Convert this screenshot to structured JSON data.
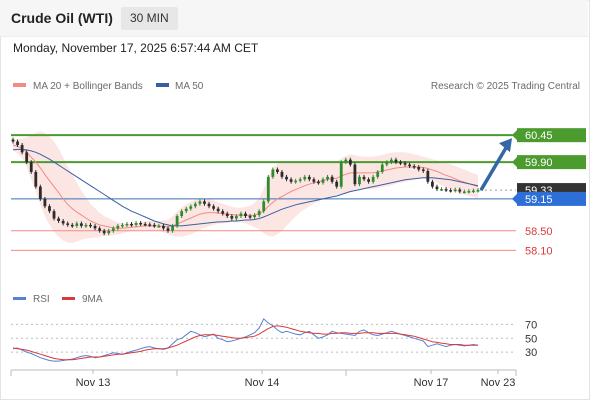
{
  "header": {
    "title": "Crude Oil (WTI)",
    "timeframe": "30 MIN"
  },
  "timestamp": "Monday, November 17, 2025 6:57:44 AM CET",
  "legend": {
    "ma20_label": "MA 20 + Bollinger Bands",
    "ma50_label": "MA 50",
    "ma20_color": "#f28b82",
    "ma50_color": "#3a5fa0",
    "credit": "Research © 2025 Trading Central"
  },
  "rsi_legend": {
    "rsi_label": "RSI",
    "ma_label": "9MA",
    "rsi_color": "#5b7fd6",
    "ma_color": "#d93a3a"
  },
  "colors": {
    "up": "#2e8b2e",
    "down": "#2b2b2b",
    "resistance": "#4c9b2e",
    "support_line": "#3a6fb5",
    "support_text": "#d93a3a",
    "arrow": "#3567a6",
    "current": "#333333"
  },
  "chart_data": [
    {
      "type": "candlestick",
      "x_ticks": [
        "Nov 13",
        "Nov 14",
        "Nov 17",
        "Nov 23"
      ],
      "ylim": [
        57.7,
        60.8
      ],
      "levels": [
        {
          "label": "60.45",
          "value": 60.45,
          "kind": "resistance"
        },
        {
          "label": "59.90",
          "value": 59.9,
          "kind": "resistance"
        },
        {
          "label": "59.33",
          "value": 59.33,
          "kind": "current"
        },
        {
          "label": "59.15",
          "value": 59.15,
          "kind": "pivot"
        },
        {
          "label": "58.50",
          "value": 58.5,
          "kind": "support"
        },
        {
          "label": "58.10",
          "value": 58.1,
          "kind": "support"
        }
      ],
      "close": [
        60.32,
        60.25,
        60.1,
        59.9,
        59.7,
        59.4,
        59.15,
        59.0,
        58.9,
        58.75,
        58.7,
        58.65,
        58.62,
        58.6,
        58.65,
        58.6,
        58.62,
        58.6,
        58.55,
        58.5,
        58.45,
        58.5,
        58.55,
        58.6,
        58.62,
        58.64,
        58.62,
        58.66,
        58.64,
        58.63,
        58.62,
        58.6,
        58.6,
        58.55,
        58.5,
        58.6,
        58.8,
        58.9,
        58.95,
        59.0,
        59.05,
        59.1,
        59.05,
        59.0,
        58.95,
        58.9,
        58.85,
        58.8,
        58.75,
        58.8,
        58.85,
        58.8,
        58.78,
        58.82,
        58.9,
        59.1,
        59.6,
        59.75,
        59.7,
        59.6,
        59.55,
        59.5,
        59.52,
        59.55,
        59.6,
        59.55,
        59.5,
        59.48,
        59.55,
        59.6,
        59.5,
        59.4,
        59.9,
        59.95,
        59.85,
        59.45,
        59.6,
        59.55,
        59.5,
        59.6,
        59.7,
        59.85,
        59.9,
        59.95,
        59.9,
        59.88,
        59.85,
        59.82,
        59.8,
        59.75,
        59.72,
        59.5,
        59.4,
        59.35,
        59.35,
        59.33,
        59.32,
        59.34,
        59.3,
        59.3,
        59.31,
        59.32,
        59.33
      ],
      "ma20": [
        60.25,
        60.22,
        60.18,
        60.1,
        60.0,
        59.9,
        59.78,
        59.65,
        59.52,
        59.4,
        59.28,
        59.15,
        59.04,
        58.95,
        58.88,
        58.82,
        58.76,
        58.7,
        58.66,
        58.62,
        58.6,
        58.58,
        58.56,
        58.55,
        58.55,
        58.56,
        58.57,
        58.58,
        58.59,
        58.6,
        58.6,
        58.6,
        58.6,
        58.59,
        58.58,
        58.6,
        58.64,
        58.68,
        58.72,
        58.76,
        58.8,
        58.84,
        58.86,
        58.87,
        58.87,
        58.86,
        58.85,
        58.84,
        58.83,
        58.82,
        58.82,
        58.82,
        58.81,
        58.82,
        58.85,
        58.9,
        59.0,
        59.08,
        59.15,
        59.2,
        59.25,
        59.3,
        59.34,
        59.38,
        59.42,
        59.45,
        59.48,
        59.5,
        59.52,
        59.55,
        59.56,
        59.57,
        59.62,
        59.65,
        59.68,
        59.68,
        59.68,
        59.68,
        59.68,
        59.68,
        59.7,
        59.72,
        59.74,
        59.76,
        59.78,
        59.79,
        59.8,
        59.8,
        59.8,
        59.8,
        59.79,
        59.77,
        59.74,
        59.71,
        59.67,
        59.63,
        59.6,
        59.56,
        59.52,
        59.49,
        59.46,
        59.43,
        59.4
      ],
      "ma50": [
        60.15,
        60.16,
        60.16,
        60.15,
        60.13,
        60.1,
        60.06,
        60.01,
        59.96,
        59.9,
        59.84,
        59.78,
        59.72,
        59.66,
        59.6,
        59.54,
        59.48,
        59.42,
        59.36,
        59.3,
        59.24,
        59.18,
        59.12,
        59.06,
        59.0,
        58.95,
        58.9,
        58.86,
        58.82,
        58.78,
        58.74,
        58.7,
        58.67,
        58.64,
        58.62,
        58.6,
        58.6,
        58.6,
        58.61,
        58.62,
        58.63,
        58.64,
        58.65,
        58.66,
        58.67,
        58.68,
        58.68,
        58.69,
        58.7,
        58.7,
        58.71,
        58.72,
        58.72,
        58.73,
        58.75,
        58.78,
        58.82,
        58.86,
        58.9,
        58.94,
        58.97,
        59.0,
        59.03,
        59.05,
        59.07,
        59.09,
        59.11,
        59.13,
        59.15,
        59.17,
        59.19,
        59.21,
        59.24,
        59.27,
        59.3,
        59.32,
        59.34,
        59.36,
        59.38,
        59.4,
        59.42,
        59.44,
        59.46,
        59.48,
        59.5,
        59.52,
        59.54,
        59.55,
        59.56,
        59.57,
        59.58,
        59.58,
        59.58,
        59.57,
        59.56,
        59.55,
        59.54,
        59.52,
        59.5,
        59.48,
        59.46,
        59.44,
        59.42
      ],
      "bb_width": [
        0.1,
        0.15,
        0.2,
        0.3,
        0.45,
        0.6,
        0.75,
        0.85,
        0.9,
        0.92,
        0.9,
        0.85,
        0.78,
        0.7,
        0.6,
        0.5,
        0.42,
        0.35,
        0.3,
        0.25,
        0.2,
        0.18,
        0.15,
        0.12,
        0.1,
        0.08,
        0.07,
        0.07,
        0.08,
        0.09,
        0.1,
        0.1,
        0.1,
        0.12,
        0.15,
        0.2,
        0.26,
        0.3,
        0.32,
        0.33,
        0.33,
        0.32,
        0.3,
        0.28,
        0.25,
        0.22,
        0.2,
        0.18,
        0.16,
        0.15,
        0.15,
        0.17,
        0.2,
        0.25,
        0.32,
        0.45,
        0.6,
        0.7,
        0.72,
        0.7,
        0.65,
        0.6,
        0.55,
        0.5,
        0.48,
        0.45,
        0.42,
        0.4,
        0.38,
        0.36,
        0.35,
        0.34,
        0.36,
        0.38,
        0.38,
        0.36,
        0.34,
        0.33,
        0.33,
        0.33,
        0.33,
        0.33,
        0.33,
        0.33,
        0.32,
        0.31,
        0.3,
        0.28,
        0.26,
        0.24,
        0.22,
        0.22,
        0.22,
        0.23,
        0.24,
        0.25,
        0.26,
        0.26,
        0.26,
        0.26,
        0.25,
        0.24,
        0.24
      ],
      "projection": {
        "from": 59.33,
        "to": 60.45
      }
    },
    {
      "type": "line",
      "title": "RSI",
      "ylim": [
        10,
        85
      ],
      "y_ticks": [
        70,
        50,
        30
      ],
      "series": [
        {
          "name": "RSI",
          "values": [
            35,
            36,
            33,
            30,
            28,
            25,
            22,
            20,
            18,
            17,
            17,
            18,
            19,
            20,
            22,
            24,
            25,
            24,
            22,
            23,
            25,
            27,
            29,
            28,
            27,
            29,
            31,
            33,
            35,
            37,
            38,
            36,
            35,
            34,
            36,
            42,
            48,
            50,
            55,
            60,
            58,
            55,
            52,
            54,
            56,
            50,
            48,
            45,
            46,
            48,
            50,
            52,
            55,
            58,
            65,
            78,
            72,
            68,
            62,
            58,
            60,
            58,
            56,
            55,
            58,
            60,
            55,
            50,
            52,
            55,
            60,
            58,
            57,
            56,
            55,
            54,
            60,
            62,
            58,
            55,
            54,
            56,
            58,
            60,
            58,
            56,
            54,
            52,
            50,
            48,
            46,
            38,
            40,
            42,
            40,
            38,
            40,
            41,
            40,
            39,
            40,
            41,
            40
          ]
        },
        {
          "name": "9MA",
          "values": [
            36,
            35,
            34,
            33,
            31,
            29,
            27,
            25,
            23,
            21,
            20,
            19,
            19,
            19,
            20,
            21,
            22,
            23,
            23,
            23,
            24,
            25,
            26,
            27,
            27,
            28,
            29,
            30,
            31,
            33,
            34,
            35,
            35,
            35,
            36,
            38,
            40,
            43,
            46,
            49,
            52,
            54,
            55,
            55,
            55,
            54,
            53,
            52,
            51,
            50,
            50,
            51,
            52,
            53,
            56,
            60,
            64,
            67,
            68,
            67,
            66,
            64,
            62,
            60,
            59,
            58,
            57,
            57,
            56,
            56,
            57,
            57,
            58,
            58,
            57,
            57,
            57,
            58,
            58,
            58,
            57,
            57,
            57,
            57,
            57,
            56,
            55,
            54,
            53,
            51,
            49,
            47,
            45,
            44,
            43,
            42,
            41,
            41,
            41,
            40,
            40,
            40,
            40
          ]
        }
      ]
    }
  ]
}
